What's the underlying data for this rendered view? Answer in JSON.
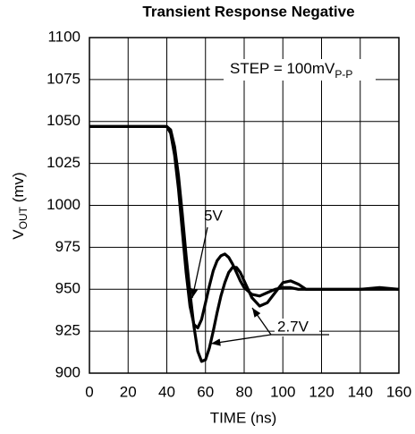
{
  "chart_data": {
    "type": "line",
    "title": "Transient Response Negative",
    "x_label": "TIME (ns)",
    "y_label": {
      "main": "V",
      "sub": "OUT",
      "rest": " (mv)"
    },
    "annotations": [
      {
        "text": "STEP = 100mV",
        "sub": "P-P"
      },
      {
        "text": "5V"
      },
      {
        "text": "2.7V"
      }
    ],
    "x": [
      0,
      10,
      20,
      30,
      40,
      42,
      44,
      46,
      48,
      50,
      52,
      54,
      56,
      58,
      60,
      62,
      64,
      66,
      68,
      70,
      72,
      74,
      76,
      78,
      80,
      84,
      88,
      92,
      96,
      100,
      104,
      108,
      112,
      120,
      130,
      140,
      150,
      160
    ],
    "series": [
      {
        "name": "5V",
        "color": "#000000",
        "values": [
          1047,
          1047,
          1047,
          1047,
          1047,
          1043,
          1030,
          1010,
          985,
          960,
          940,
          929,
          927,
          932,
          942,
          952,
          961,
          967,
          970,
          971,
          969,
          965,
          960,
          955,
          951,
          947,
          946,
          948,
          950,
          951,
          951,
          950,
          950,
          950,
          950,
          950,
          950,
          950
        ]
      },
      {
        "name": "2.7V",
        "color": "#000000",
        "values": [
          1047,
          1047,
          1047,
          1047,
          1047,
          1045,
          1035,
          1018,
          995,
          970,
          948,
          928,
          913,
          907,
          908,
          915,
          925,
          936,
          946,
          954,
          960,
          963,
          963,
          960,
          955,
          945,
          940,
          942,
          948,
          954,
          955,
          953,
          950,
          950,
          950,
          950,
          951,
          950
        ]
      }
    ],
    "xlim": [
      0,
      160
    ],
    "xticks": [
      0,
      20,
      40,
      60,
      80,
      100,
      120,
      140,
      160
    ],
    "ylim": [
      900,
      1100
    ],
    "yticks": [
      900,
      925,
      950,
      975,
      1000,
      1025,
      1050,
      1075,
      1100
    ],
    "grid": true
  }
}
